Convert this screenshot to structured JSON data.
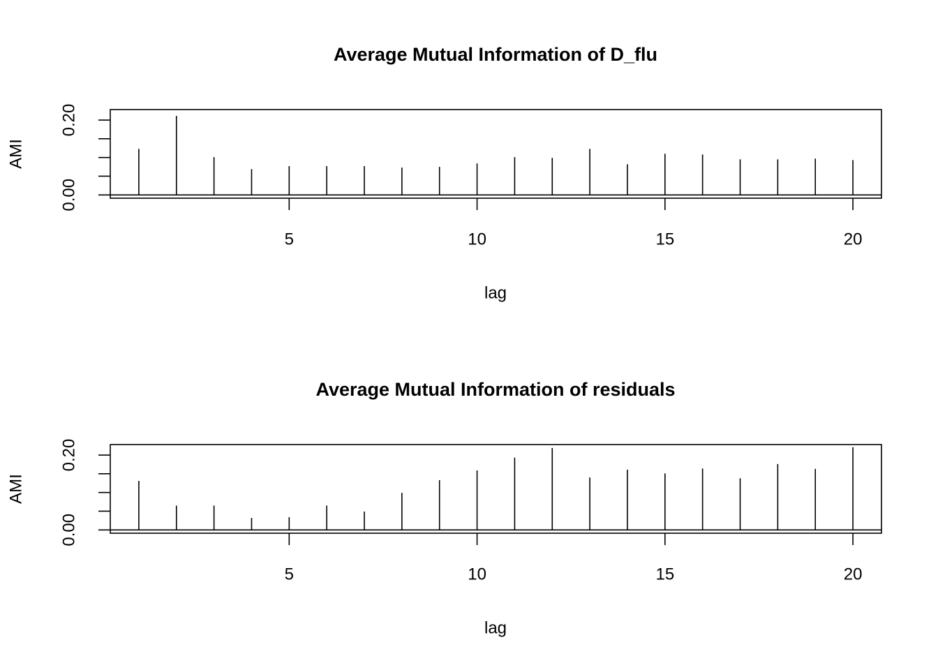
{
  "chart_data": [
    {
      "type": "bar",
      "title": "Average Mutual Information of D_flu",
      "xlabel": "lag",
      "ylabel": "AMI",
      "x": [
        1,
        2,
        3,
        4,
        5,
        6,
        7,
        8,
        9,
        10,
        11,
        12,
        13,
        14,
        15,
        16,
        17,
        18,
        19,
        20
      ],
      "values": [
        0.123,
        0.211,
        0.101,
        0.069,
        0.077,
        0.077,
        0.077,
        0.073,
        0.075,
        0.084,
        0.101,
        0.099,
        0.123,
        0.082,
        0.11,
        0.108,
        0.095,
        0.095,
        0.097,
        0.093
      ],
      "color": "#000000",
      "xlim": [
        0.24,
        20.76
      ],
      "xticks": [
        5,
        10,
        15,
        20
      ],
      "ylim": [
        -0.0088,
        0.228
      ],
      "yticks": [
        {
          "value": 0,
          "label": "0.00"
        },
        {
          "value": 0.05,
          "label": null
        },
        {
          "value": 0.1,
          "label": null
        },
        {
          "value": 0.15,
          "label": null
        },
        {
          "value": 0.2,
          "label": "0.20"
        }
      ]
    },
    {
      "type": "bar",
      "title": "Average Mutual Information of residuals",
      "xlabel": "lag",
      "ylabel": "AMI",
      "x": [
        1,
        2,
        3,
        4,
        5,
        6,
        7,
        8,
        9,
        10,
        11,
        12,
        13,
        14,
        15,
        16,
        17,
        18,
        19,
        20
      ],
      "values": [
        0.131,
        0.065,
        0.065,
        0.032,
        0.034,
        0.065,
        0.049,
        0.099,
        0.133,
        0.159,
        0.193,
        0.219,
        0.14,
        0.161,
        0.151,
        0.164,
        0.138,
        0.176,
        0.163,
        0.221
      ],
      "color": "#000000",
      "xlim": [
        0.24,
        20.76
      ],
      "xticks": [
        5,
        10,
        15,
        20
      ],
      "ylim": [
        -0.0088,
        0.228
      ],
      "yticks": [
        {
          "value": 0,
          "label": "0.00"
        },
        {
          "value": 0.05,
          "label": null
        },
        {
          "value": 0.1,
          "label": null
        },
        {
          "value": 0.15,
          "label": null
        },
        {
          "value": 0.2,
          "label": "0.20"
        }
      ]
    }
  ]
}
